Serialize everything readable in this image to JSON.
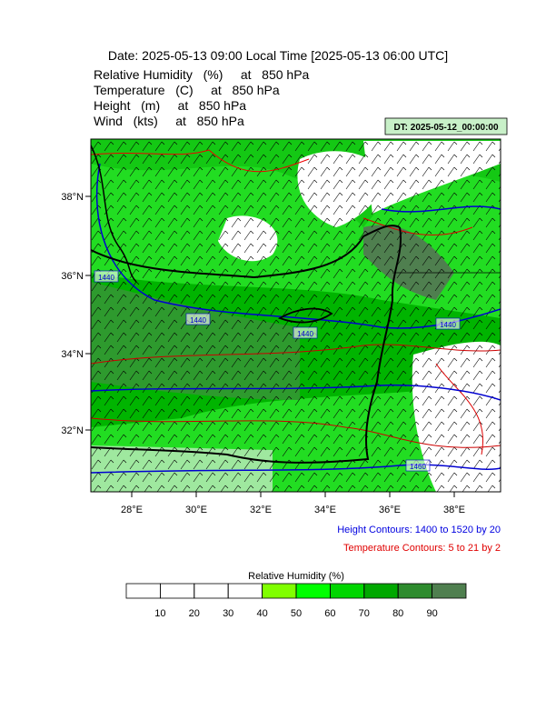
{
  "title": "Date: 2025-05-13  09:00 Local Time [2025-05-13  06:00 UTC]",
  "fields": [
    "Relative Humidity   (%)     at   850 hPa",
    "Temperature   (C)     at   850 hPa",
    "Height   (m)     at   850 hPa",
    "Wind   (kts)     at   850 hPa"
  ],
  "dt_label": "DT: 2025-05-12_00:00:00",
  "map": {
    "lat_labels": [
      "38°N",
      "36°N",
      "34°N",
      "32°N"
    ],
    "lon_labels": [
      "28°E",
      "30°E",
      "32°E",
      "34°E",
      "36°E",
      "38°E"
    ],
    "contour_labels": [
      "1440",
      "1440",
      "1440",
      "1440",
      "1460"
    ]
  },
  "notes": {
    "height": "Height Contours: 1400 to 1520 by 20",
    "temperature": "Temperature Contours: 5 to 21 by 2"
  },
  "colorbar": {
    "title": "Relative Humidity  (%)",
    "ticks": [
      10,
      20,
      30,
      40,
      50,
      60,
      70,
      80,
      90
    ],
    "colors": [
      "#ffffff",
      "#ffffff",
      "#ffffff",
      "#ffffff",
      "#80ff00",
      "#00ff00",
      "#00d600",
      "#00a800",
      "#2e8b2e",
      "#4f7f4f"
    ]
  }
}
